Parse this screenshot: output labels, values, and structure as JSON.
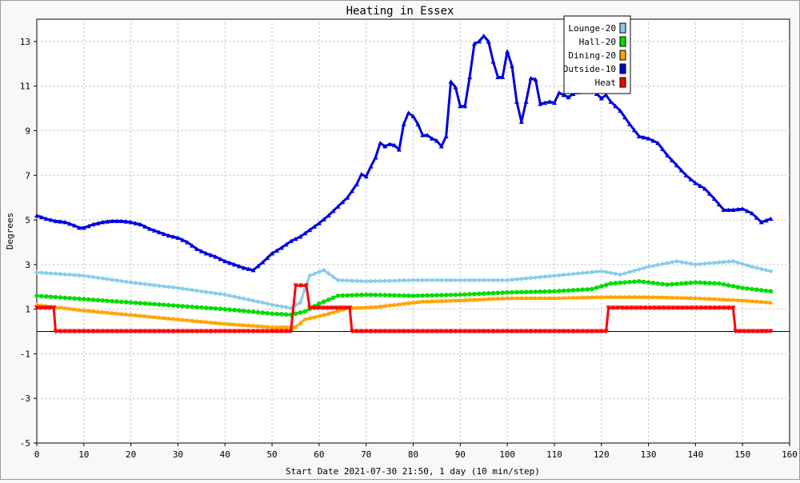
{
  "chart_data": {
    "type": "line",
    "title": "Heating in Essex",
    "xlabel": "Start Date 2021-07-30 21:50, 1 day (10 min/step)",
    "ylabel": "Degrees",
    "xlim": [
      0,
      160
    ],
    "ylim": [
      -5,
      14
    ],
    "xticks": [
      0,
      10,
      20,
      30,
      40,
      50,
      60,
      70,
      80,
      90,
      100,
      110,
      120,
      130,
      140,
      150,
      160
    ],
    "yticks": [
      -5,
      -3,
      -1,
      1,
      3,
      5,
      7,
      9,
      11,
      13
    ],
    "grid": true,
    "legend_position": "top-right",
    "series": [
      {
        "name": "Lounge-20",
        "color": "#87ceeb",
        "marker": "diamond",
        "points": [
          [
            0,
            2.65
          ],
          [
            10,
            2.5
          ],
          [
            20,
            2.2
          ],
          [
            30,
            1.95
          ],
          [
            40,
            1.65
          ],
          [
            50,
            1.2
          ],
          [
            54,
            1.05
          ],
          [
            56,
            1.3
          ],
          [
            58,
            2.5
          ],
          [
            61,
            2.75
          ],
          [
            64,
            2.3
          ],
          [
            70,
            2.25
          ],
          [
            80,
            2.3
          ],
          [
            90,
            2.3
          ],
          [
            100,
            2.3
          ],
          [
            110,
            2.5
          ],
          [
            120,
            2.7
          ],
          [
            124,
            2.55
          ],
          [
            130,
            2.9
          ],
          [
            136,
            3.15
          ],
          [
            140,
            3.0
          ],
          [
            145,
            3.1
          ],
          [
            148,
            3.15
          ],
          [
            152,
            2.9
          ],
          [
            156,
            2.7
          ]
        ]
      },
      {
        "name": "Hall-20",
        "color": "#00dd00",
        "marker": "circle",
        "points": [
          [
            0,
            1.6
          ],
          [
            10,
            1.45
          ],
          [
            20,
            1.3
          ],
          [
            30,
            1.15
          ],
          [
            40,
            1.0
          ],
          [
            50,
            0.8
          ],
          [
            54,
            0.75
          ],
          [
            57,
            0.9
          ],
          [
            60,
            1.25
          ],
          [
            64,
            1.6
          ],
          [
            70,
            1.65
          ],
          [
            80,
            1.6
          ],
          [
            90,
            1.65
          ],
          [
            100,
            1.75
          ],
          [
            110,
            1.8
          ],
          [
            118,
            1.9
          ],
          [
            122,
            2.15
          ],
          [
            128,
            2.25
          ],
          [
            134,
            2.1
          ],
          [
            140,
            2.2
          ],
          [
            145,
            2.15
          ],
          [
            150,
            1.95
          ],
          [
            156,
            1.8
          ]
        ]
      },
      {
        "name": "Dining-20",
        "color": "#ffa500",
        "marker": "triangle",
        "points": [
          [
            0,
            1.2
          ],
          [
            10,
            0.95
          ],
          [
            20,
            0.75
          ],
          [
            30,
            0.55
          ],
          [
            40,
            0.35
          ],
          [
            50,
            0.2
          ],
          [
            55,
            0.2
          ],
          [
            57,
            0.55
          ],
          [
            62,
            0.8
          ],
          [
            66,
            1.05
          ],
          [
            72,
            1.1
          ],
          [
            78,
            1.25
          ],
          [
            82,
            1.35
          ],
          [
            90,
            1.4
          ],
          [
            100,
            1.5
          ],
          [
            110,
            1.5
          ],
          [
            120,
            1.55
          ],
          [
            130,
            1.55
          ],
          [
            140,
            1.5
          ],
          [
            150,
            1.4
          ],
          [
            156,
            1.3
          ]
        ]
      },
      {
        "name": "Outside-10",
        "color": "#0000dd",
        "marker": "triangle",
        "points": [
          [
            0,
            5.2
          ],
          [
            2,
            5.05
          ],
          [
            4,
            4.95
          ],
          [
            6,
            4.9
          ],
          [
            8,
            4.75
          ],
          [
            9,
            4.65
          ],
          [
            10,
            4.65
          ],
          [
            12,
            4.8
          ],
          [
            14,
            4.9
          ],
          [
            16,
            4.95
          ],
          [
            18,
            4.95
          ],
          [
            20,
            4.9
          ],
          [
            22,
            4.8
          ],
          [
            24,
            4.6
          ],
          [
            26,
            4.45
          ],
          [
            28,
            4.3
          ],
          [
            30,
            4.2
          ],
          [
            32,
            4.0
          ],
          [
            34,
            3.7
          ],
          [
            36,
            3.5
          ],
          [
            38,
            3.35
          ],
          [
            40,
            3.15
          ],
          [
            42,
            3.0
          ],
          [
            44,
            2.85
          ],
          [
            46,
            2.75
          ],
          [
            48,
            3.1
          ],
          [
            50,
            3.5
          ],
          [
            52,
            3.75
          ],
          [
            54,
            4.05
          ],
          [
            56,
            4.25
          ],
          [
            58,
            4.55
          ],
          [
            60,
            4.85
          ],
          [
            62,
            5.2
          ],
          [
            64,
            5.6
          ],
          [
            66,
            6.0
          ],
          [
            68,
            6.6
          ],
          [
            69,
            7.05
          ],
          [
            70,
            6.95
          ],
          [
            71,
            7.4
          ],
          [
            72,
            7.8
          ],
          [
            73,
            8.45
          ],
          [
            74,
            8.3
          ],
          [
            75,
            8.4
          ],
          [
            76,
            8.35
          ],
          [
            77,
            8.15
          ],
          [
            78,
            9.3
          ],
          [
            79,
            9.8
          ],
          [
            80,
            9.65
          ],
          [
            81,
            9.3
          ],
          [
            82,
            8.8
          ],
          [
            83,
            8.8
          ],
          [
            84,
            8.65
          ],
          [
            85,
            8.55
          ],
          [
            86,
            8.3
          ],
          [
            87,
            8.75
          ],
          [
            88,
            11.2
          ],
          [
            89,
            10.95
          ],
          [
            90,
            10.1
          ],
          [
            91,
            10.1
          ],
          [
            92,
            11.4
          ],
          [
            93,
            12.9
          ],
          [
            94,
            13.0
          ],
          [
            95,
            13.25
          ],
          [
            96,
            13.0
          ],
          [
            97,
            12.1
          ],
          [
            98,
            11.4
          ],
          [
            99,
            11.4
          ],
          [
            100,
            12.55
          ],
          [
            101,
            11.9
          ],
          [
            102,
            10.3
          ],
          [
            103,
            9.4
          ],
          [
            104,
            10.3
          ],
          [
            105,
            11.35
          ],
          [
            106,
            11.3
          ],
          [
            107,
            10.2
          ],
          [
            108,
            10.25
          ],
          [
            109,
            10.3
          ],
          [
            110,
            10.25
          ],
          [
            111,
            10.7
          ],
          [
            112,
            10.6
          ],
          [
            113,
            10.5
          ],
          [
            114,
            10.65
          ],
          [
            116,
            10.8
          ],
          [
            118,
            10.85
          ],
          [
            120,
            10.45
          ],
          [
            121,
            10.6
          ],
          [
            122,
            10.3
          ],
          [
            124,
            9.9
          ],
          [
            126,
            9.3
          ],
          [
            128,
            8.75
          ],
          [
            130,
            8.65
          ],
          [
            132,
            8.45
          ],
          [
            134,
            7.9
          ],
          [
            136,
            7.45
          ],
          [
            138,
            7.0
          ],
          [
            140,
            6.65
          ],
          [
            142,
            6.4
          ],
          [
            144,
            5.95
          ],
          [
            146,
            5.45
          ],
          [
            148,
            5.45
          ],
          [
            150,
            5.5
          ],
          [
            152,
            5.3
          ],
          [
            154,
            4.9
          ],
          [
            156,
            5.05
          ]
        ]
      },
      {
        "name": "Heat",
        "color": "#ff0000",
        "marker": "triangle-down",
        "points": [
          [
            0,
            1.05
          ],
          [
            3.6,
            1.05
          ],
          [
            4,
            0
          ],
          [
            54,
            0
          ],
          [
            55,
            2.05
          ],
          [
            57.3,
            2.05
          ],
          [
            58,
            1.05
          ],
          [
            66.5,
            1.05
          ],
          [
            67,
            0
          ],
          [
            121,
            0
          ],
          [
            121.5,
            1.05
          ],
          [
            148,
            1.05
          ],
          [
            148.5,
            0
          ],
          [
            156,
            0
          ]
        ]
      }
    ]
  }
}
